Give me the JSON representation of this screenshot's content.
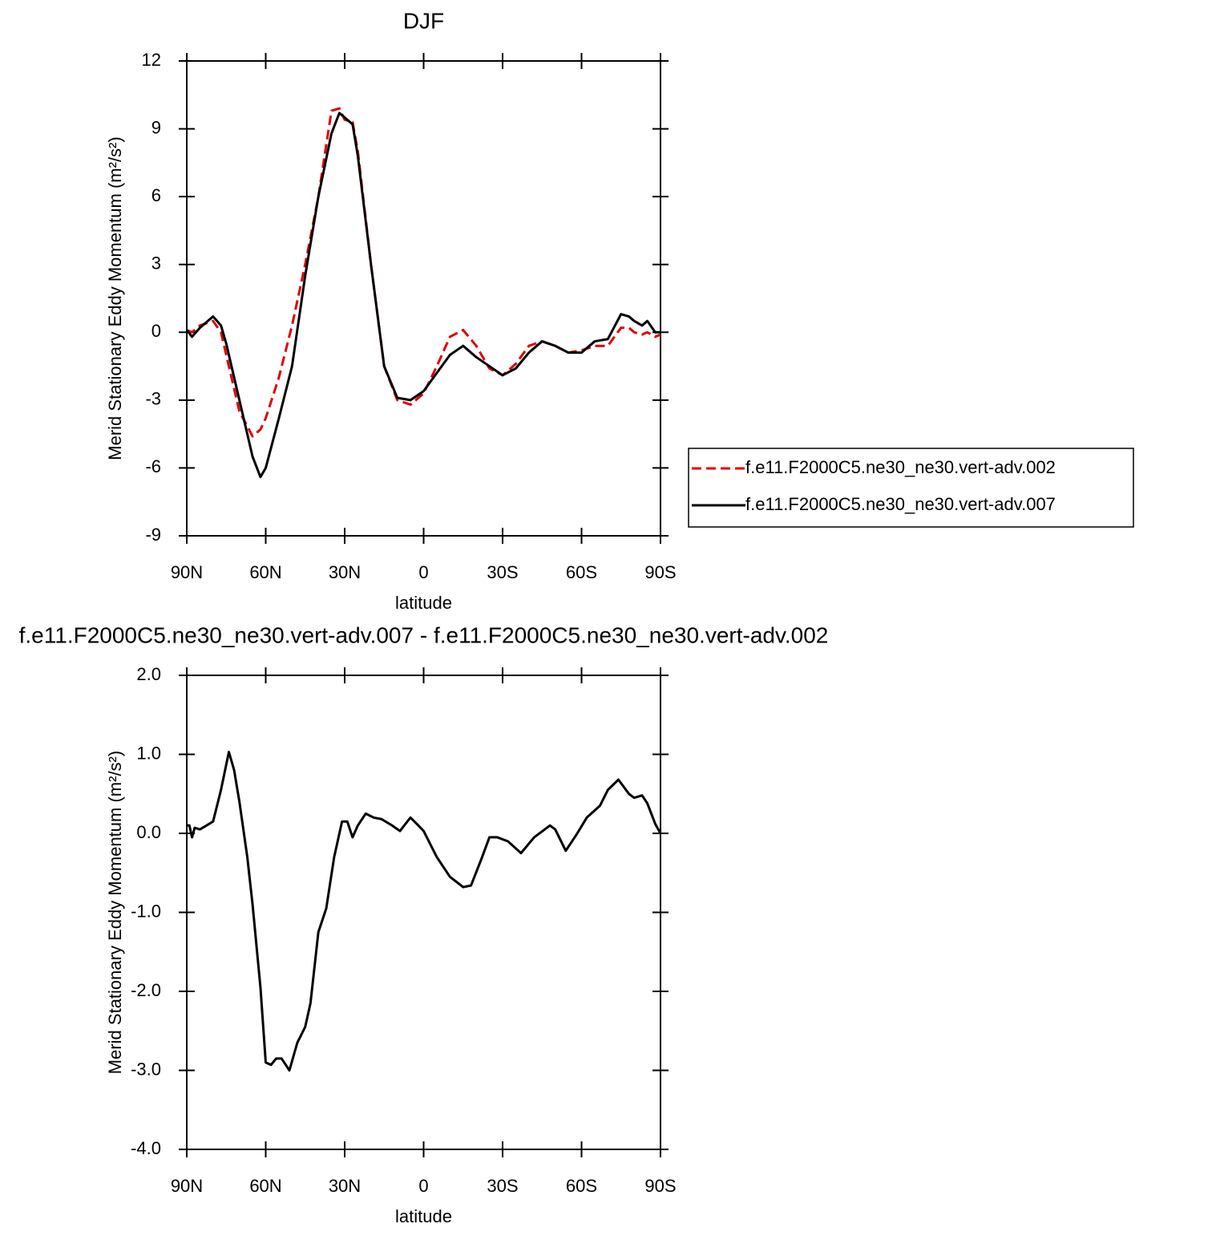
{
  "chart_data": [
    {
      "type": "line",
      "title": "DJF",
      "xlabel": "latitude",
      "ylabel": "Merid Stationary Eddy Momentum (m²/s²)",
      "x": [
        90,
        88,
        85,
        80,
        77,
        75,
        70,
        65,
        62,
        60,
        55,
        50,
        45,
        40,
        35,
        32,
        30,
        27,
        25,
        20,
        15,
        10,
        5,
        0,
        -5,
        -10,
        -15,
        -20,
        -25,
        -30,
        -35,
        -40,
        -45,
        -50,
        -55,
        -60,
        -65,
        -70,
        -75,
        -78,
        -80,
        -83,
        -85,
        -88,
        -90
      ],
      "series": [
        {
          "name": "f.e11.F2000C5.ne30_ne30.vert-adv.002",
          "color": "#e00000",
          "line_style": "dashed",
          "values": [
            0.1,
            0.0,
            0.3,
            0.5,
            0.0,
            -1.0,
            -3.5,
            -4.6,
            -4.3,
            -3.8,
            -2.0,
            0.3,
            3.0,
            6.0,
            9.8,
            9.9,
            9.4,
            9.3,
            8.0,
            3.0,
            -1.5,
            -3.0,
            -3.2,
            -2.7,
            -1.5,
            -0.2,
            0.1,
            -0.6,
            -1.6,
            -1.9,
            -1.4,
            -0.6,
            -0.4,
            -0.6,
            -0.9,
            -0.8,
            -0.6,
            -0.6,
            0.2,
            0.2,
            0.0,
            -0.1,
            0.0,
            -0.2,
            -0.1
          ]
        },
        {
          "name": "f.e11.F2000C5.ne30_ne30.vert-adv.007",
          "color": "#000000",
          "line_style": "solid",
          "values": [
            0.1,
            -0.2,
            0.2,
            0.7,
            0.3,
            -0.5,
            -3.0,
            -5.5,
            -6.4,
            -6.0,
            -3.8,
            -1.5,
            2.5,
            6.0,
            8.8,
            9.7,
            9.5,
            9.2,
            7.8,
            3.0,
            -1.5,
            -2.9,
            -3.0,
            -2.6,
            -1.8,
            -1.0,
            -0.6,
            -1.1,
            -1.5,
            -1.9,
            -1.6,
            -0.9,
            -0.4,
            -0.6,
            -0.9,
            -0.9,
            -0.4,
            -0.3,
            0.8,
            0.7,
            0.5,
            0.3,
            0.5,
            0.0,
            0.0
          ]
        }
      ],
      "xlim": [
        90,
        -90
      ],
      "xticks": [
        {
          "value": 90,
          "label": "90N"
        },
        {
          "value": 60,
          "label": "60N"
        },
        {
          "value": 30,
          "label": "30N"
        },
        0,
        {
          "value": -30,
          "label": "30S"
        },
        {
          "value": -60,
          "label": "60S"
        },
        {
          "value": -90,
          "label": "90S"
        }
      ],
      "ylim": [
        -9,
        12
      ],
      "yticks": [
        -9,
        -6,
        -3,
        0,
        3,
        6,
        9,
        12
      ],
      "legend": "right"
    },
    {
      "type": "line",
      "title": "f.e11.F2000C5.ne30_ne30.vert-adv.007 - f.e11.F2000C5.ne30_ne30.vert-adv.002",
      "xlabel": "latitude",
      "ylabel": "Merid Stationary Eddy Momentum (m²/s²)",
      "x": [
        90,
        89,
        88,
        87,
        85,
        80,
        77,
        74,
        72,
        70,
        67,
        65,
        62,
        60,
        58,
        56,
        54,
        51,
        48,
        45,
        43,
        40,
        37,
        34,
        31,
        29,
        27,
        25,
        22,
        19,
        16,
        12,
        9,
        5,
        2,
        0,
        -5,
        -10,
        -15,
        -18,
        -22,
        -25,
        -28,
        -32,
        -37,
        -42,
        -48,
        -50,
        -54,
        -58,
        -62,
        -67,
        -70,
        -74,
        -78,
        -80,
        -83,
        -85,
        -88,
        -90
      ],
      "series": [
        {
          "color": "#000000",
          "line_style": "solid",
          "values": [
            0.1,
            0.1,
            -0.05,
            0.07,
            0.05,
            0.15,
            0.55,
            1.03,
            0.8,
            0.4,
            -0.3,
            -0.9,
            -1.95,
            -2.9,
            -2.93,
            -2.85,
            -2.85,
            -3.0,
            -2.65,
            -2.45,
            -2.15,
            -1.25,
            -0.95,
            -0.3,
            0.15,
            0.15,
            -0.05,
            0.1,
            0.25,
            0.2,
            0.18,
            0.1,
            0.03,
            0.2,
            0.1,
            0.03,
            -0.3,
            -0.55,
            -0.68,
            -0.66,
            -0.32,
            -0.05,
            -0.05,
            -0.1,
            -0.25,
            -0.05,
            0.1,
            0.05,
            -0.22,
            -0.02,
            0.2,
            0.35,
            0.55,
            0.68,
            0.5,
            0.45,
            0.48,
            0.38,
            0.12,
            0.0
          ]
        }
      ],
      "xlim": [
        90,
        -90
      ],
      "xticks": [
        {
          "value": 90,
          "label": "90N"
        },
        {
          "value": 60,
          "label": "60N"
        },
        {
          "value": 30,
          "label": "30N"
        },
        0,
        {
          "value": -30,
          "label": "30S"
        },
        {
          "value": -60,
          "label": "60S"
        },
        {
          "value": -90,
          "label": "90S"
        }
      ],
      "ylim": [
        -4,
        2
      ],
      "yticks": [
        {
          "value": -4,
          "label": "-4.0"
        },
        {
          "value": -3,
          "label": "-3.0"
        },
        {
          "value": -2,
          "label": "-2.0"
        },
        {
          "value": -1,
          "label": "-1.0"
        },
        {
          "value": 0,
          "label": "0.0"
        },
        {
          "value": 1,
          "label": "1.0"
        },
        {
          "value": 2,
          "label": "2.0"
        }
      ]
    }
  ]
}
